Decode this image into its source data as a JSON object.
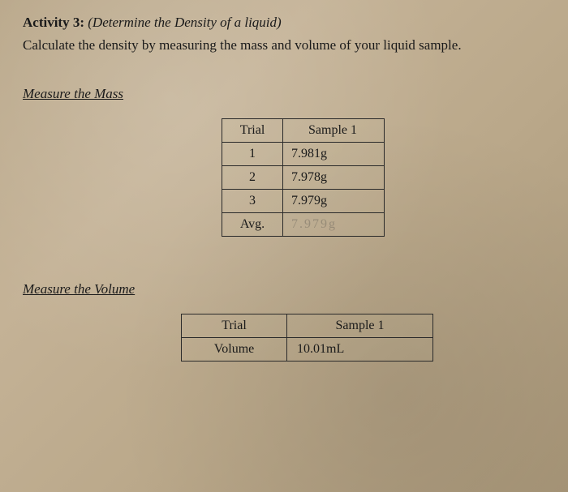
{
  "header": {
    "activity_label": "Activity 3:",
    "activity_title": "(Determine the Density of a liquid)",
    "instruction": "Calculate the density by measuring the mass and volume of your liquid sample."
  },
  "mass_section": {
    "heading": "Measure the Mass",
    "table": {
      "col1_header": "Trial",
      "col2_header": "Sample 1",
      "rows": [
        {
          "trial": "1",
          "value": "7.981g"
        },
        {
          "trial": "2",
          "value": "7.978g"
        },
        {
          "trial": "3",
          "value": "7.979g"
        }
      ],
      "avg_label": "Avg.",
      "avg_value": "7.979g"
    }
  },
  "volume_section": {
    "heading": "Measure the Volume",
    "table": {
      "col1_header": "Trial",
      "col2_header": "Sample 1",
      "row_label": "Volume",
      "row_value": "10.01mL"
    }
  }
}
